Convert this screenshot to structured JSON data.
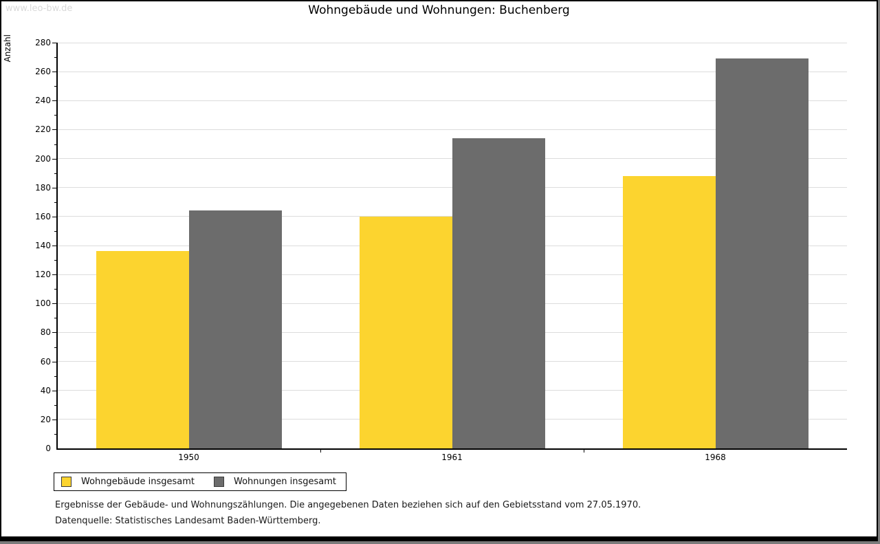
{
  "watermark": "www.leo-bw.de",
  "title": "Wohngebäude und Wohnungen: Buchenberg",
  "chart_data": {
    "type": "bar",
    "title": "Wohngebäude und Wohnungen: Buchenberg",
    "categories": [
      "1950",
      "1961",
      "1968"
    ],
    "series": [
      {
        "name": "Wohngebäude insgesamt",
        "color": "#FCD42F",
        "values": [
          136,
          160,
          188
        ]
      },
      {
        "name": "Wohnungen insgesamt",
        "color": "#6C6C6C",
        "values": [
          164,
          214,
          269
        ]
      }
    ],
    "xlabel": "",
    "ylabel": "Anzahl",
    "ylim": [
      0,
      280
    ],
    "y_major_step": 20,
    "y_minor_step": 10,
    "grid": "horizontal-major",
    "gridline_color": "#dcdcdc",
    "legend_position": "bottom-left"
  },
  "footnotes": {
    "line1": "Ergebnisse der Gebäude- und Wohnungszählungen. Die angegebenen Daten beziehen sich auf den Gebietsstand vom 27.05.1970.",
    "line2": "Datenquelle: Statistisches Landesamt Baden-Württemberg."
  }
}
